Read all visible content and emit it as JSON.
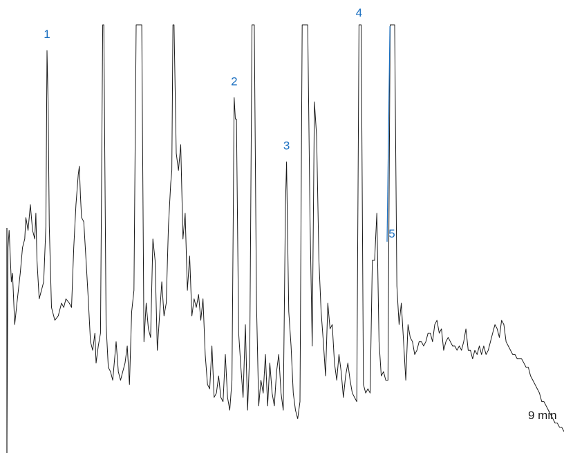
{
  "chart_data": {
    "type": "line",
    "title": "",
    "xlabel": "",
    "ylabel": "",
    "x_end_label": "9 min",
    "series": [
      {
        "points": [
          [
            0.0,
            3
          ],
          [
            0.01,
            48
          ],
          [
            0.02,
            52
          ],
          [
            0.04,
            40
          ],
          [
            0.05,
            42
          ],
          [
            0.07,
            30
          ],
          [
            0.09,
            35
          ],
          [
            0.12,
            42
          ],
          [
            0.14,
            48
          ],
          [
            0.16,
            50
          ],
          [
            0.17,
            55
          ],
          [
            0.19,
            52
          ],
          [
            0.21,
            58
          ],
          [
            0.23,
            52
          ],
          [
            0.25,
            50
          ],
          [
            0.26,
            56
          ],
          [
            0.27,
            45
          ],
          [
            0.29,
            36
          ],
          [
            0.31,
            38
          ],
          [
            0.33,
            40
          ],
          [
            0.35,
            53
          ],
          [
            0.36,
            94
          ],
          [
            0.37,
            82
          ],
          [
            0.38,
            53
          ],
          [
            0.4,
            34
          ],
          [
            0.43,
            31
          ],
          [
            0.46,
            32
          ],
          [
            0.49,
            35
          ],
          [
            0.51,
            34
          ],
          [
            0.53,
            36
          ],
          [
            0.56,
            35
          ],
          [
            0.58,
            34
          ],
          [
            0.6,
            48
          ],
          [
            0.62,
            58
          ],
          [
            0.64,
            65
          ],
          [
            0.65,
            67
          ],
          [
            0.66,
            60
          ],
          [
            0.67,
            55
          ],
          [
            0.69,
            54
          ],
          [
            0.71,
            45
          ],
          [
            0.73,
            36
          ],
          [
            0.75,
            26
          ],
          [
            0.77,
            24
          ],
          [
            0.79,
            28
          ],
          [
            0.8,
            21
          ],
          [
            0.82,
            25
          ],
          [
            0.84,
            28
          ],
          [
            0.86,
            100
          ],
          [
            0.87,
            100
          ],
          [
            0.89,
            30
          ],
          [
            0.91,
            20
          ],
          [
            0.93,
            19
          ],
          [
            0.95,
            17
          ],
          [
            0.98,
            26
          ],
          [
            1.0,
            19
          ],
          [
            1.02,
            17
          ],
          [
            1.04,
            19
          ],
          [
            1.06,
            21
          ],
          [
            1.08,
            25
          ],
          [
            1.1,
            16
          ],
          [
            1.12,
            33
          ],
          [
            1.14,
            38
          ],
          [
            1.16,
            100
          ],
          [
            1.19,
            100
          ],
          [
            1.21,
            100
          ],
          [
            1.23,
            26
          ],
          [
            1.25,
            35
          ],
          [
            1.27,
            29
          ],
          [
            1.29,
            27
          ],
          [
            1.31,
            50
          ],
          [
            1.33,
            45
          ],
          [
            1.35,
            24
          ],
          [
            1.37,
            32
          ],
          [
            1.39,
            40
          ],
          [
            1.41,
            32
          ],
          [
            1.43,
            35
          ],
          [
            1.45,
            53
          ],
          [
            1.47,
            63
          ],
          [
            1.48,
            66
          ],
          [
            1.49,
            100
          ],
          [
            1.5,
            100
          ],
          [
            1.52,
            70
          ],
          [
            1.54,
            66
          ],
          [
            1.56,
            72
          ],
          [
            1.58,
            50
          ],
          [
            1.6,
            56
          ],
          [
            1.62,
            38
          ],
          [
            1.64,
            46
          ],
          [
            1.66,
            32
          ],
          [
            1.68,
            36
          ],
          [
            1.7,
            34
          ],
          [
            1.72,
            37
          ],
          [
            1.74,
            31
          ],
          [
            1.76,
            36
          ],
          [
            1.78,
            23
          ],
          [
            1.8,
            16
          ],
          [
            1.82,
            15
          ],
          [
            1.84,
            25
          ],
          [
            1.86,
            13
          ],
          [
            1.88,
            14
          ],
          [
            1.9,
            18
          ],
          [
            1.92,
            13
          ],
          [
            1.94,
            12
          ],
          [
            1.96,
            23
          ],
          [
            1.98,
            13
          ],
          [
            2.0,
            10
          ],
          [
            2.02,
            17
          ],
          [
            2.04,
            83
          ],
          [
            2.05,
            78
          ],
          [
            2.06,
            78
          ],
          [
            2.08,
            28
          ],
          [
            2.1,
            20
          ],
          [
            2.12,
            13
          ],
          [
            2.14,
            30
          ],
          [
            2.16,
            10
          ],
          [
            2.18,
            24
          ],
          [
            2.2,
            100
          ],
          [
            2.22,
            100
          ],
          [
            2.24,
            35
          ],
          [
            2.26,
            11
          ],
          [
            2.28,
            17
          ],
          [
            2.3,
            14
          ],
          [
            2.32,
            23
          ],
          [
            2.34,
            11
          ],
          [
            2.36,
            21
          ],
          [
            2.38,
            14
          ],
          [
            2.4,
            11
          ],
          [
            2.42,
            19
          ],
          [
            2.44,
            23
          ],
          [
            2.46,
            14
          ],
          [
            2.48,
            10
          ],
          [
            2.5,
            58
          ],
          [
            2.51,
            68
          ],
          [
            2.52,
            50
          ],
          [
            2.53,
            33
          ],
          [
            2.55,
            25
          ],
          [
            2.57,
            14
          ],
          [
            2.59,
            10
          ],
          [
            2.61,
            8
          ],
          [
            2.63,
            12
          ],
          [
            2.65,
            100
          ],
          [
            2.68,
            100
          ],
          [
            2.7,
            100
          ],
          [
            2.72,
            55
          ],
          [
            2.74,
            25
          ],
          [
            2.76,
            82
          ],
          [
            2.78,
            74
          ],
          [
            2.8,
            45
          ],
          [
            2.82,
            33
          ],
          [
            2.84,
            26
          ],
          [
            2.86,
            18
          ],
          [
            2.88,
            35
          ],
          [
            2.9,
            29
          ],
          [
            2.92,
            30
          ],
          [
            2.94,
            21
          ],
          [
            2.96,
            17
          ],
          [
            2.98,
            23
          ],
          [
            3.0,
            19
          ],
          [
            3.02,
            13
          ],
          [
            3.04,
            18
          ],
          [
            3.06,
            21
          ],
          [
            3.08,
            17
          ],
          [
            3.1,
            14
          ],
          [
            3.12,
            13
          ],
          [
            3.14,
            12
          ],
          [
            3.16,
            100
          ],
          [
            3.18,
            100
          ],
          [
            3.2,
            16
          ],
          [
            3.22,
            14
          ],
          [
            3.24,
            15
          ],
          [
            3.26,
            14
          ],
          [
            3.28,
            45
          ],
          [
            3.3,
            45
          ],
          [
            3.32,
            56
          ],
          [
            3.34,
            26
          ],
          [
            3.36,
            18
          ],
          [
            3.38,
            19
          ],
          [
            3.4,
            17
          ],
          [
            3.42,
            17
          ],
          [
            3.44,
            100
          ],
          [
            3.46,
            100
          ],
          [
            3.48,
            100
          ],
          [
            3.5,
            39
          ],
          [
            3.52,
            30
          ],
          [
            3.54,
            35
          ],
          [
            3.56,
            26
          ],
          [
            3.58,
            17
          ],
          [
            3.6,
            30
          ],
          [
            3.62,
            27
          ],
          [
            3.64,
            26
          ],
          [
            3.66,
            23
          ],
          [
            3.68,
            24
          ],
          [
            3.7,
            26
          ],
          [
            3.72,
            26
          ],
          [
            3.74,
            25
          ],
          [
            3.76,
            26
          ],
          [
            3.78,
            28
          ],
          [
            3.8,
            28
          ],
          [
            3.82,
            26
          ],
          [
            3.84,
            30
          ],
          [
            3.86,
            31
          ],
          [
            3.88,
            28
          ],
          [
            3.9,
            29
          ],
          [
            3.92,
            24
          ],
          [
            3.94,
            26
          ],
          [
            3.96,
            27
          ],
          [
            3.98,
            26
          ],
          [
            4.0,
            25
          ],
          [
            4.02,
            25
          ],
          [
            4.04,
            24
          ],
          [
            4.06,
            25
          ],
          [
            4.08,
            24
          ],
          [
            4.1,
            26
          ],
          [
            4.12,
            29
          ],
          [
            4.14,
            24
          ],
          [
            4.16,
            24
          ],
          [
            4.18,
            22
          ],
          [
            4.2,
            24
          ],
          [
            4.22,
            23
          ],
          [
            4.24,
            25
          ],
          [
            4.26,
            23
          ],
          [
            4.28,
            25
          ],
          [
            4.3,
            23
          ],
          [
            4.32,
            24
          ],
          [
            4.34,
            26
          ],
          [
            4.36,
            28
          ],
          [
            4.38,
            30
          ],
          [
            4.4,
            29
          ],
          [
            4.42,
            27
          ],
          [
            4.44,
            31
          ],
          [
            4.46,
            30
          ],
          [
            4.48,
            26
          ],
          [
            4.5,
            25
          ],
          [
            4.52,
            24
          ],
          [
            4.54,
            23
          ],
          [
            4.56,
            23
          ],
          [
            4.58,
            22
          ],
          [
            4.6,
            22
          ],
          [
            4.62,
            22
          ],
          [
            4.64,
            21
          ],
          [
            4.66,
            20
          ],
          [
            4.68,
            20
          ],
          [
            4.7,
            18
          ],
          [
            4.72,
            17
          ],
          [
            4.74,
            16
          ],
          [
            4.76,
            15
          ],
          [
            4.78,
            14
          ],
          [
            4.8,
            12
          ],
          [
            4.82,
            12
          ],
          [
            4.84,
            11
          ],
          [
            4.86,
            10
          ],
          [
            4.88,
            9
          ],
          [
            4.9,
            8
          ],
          [
            4.92,
            7
          ],
          [
            4.94,
            7
          ],
          [
            4.96,
            6
          ],
          [
            4.98,
            6
          ],
          [
            5.0,
            5
          ]
        ]
      }
    ],
    "peaks": [
      {
        "label": "1",
        "x": 0.36
      },
      {
        "label": "2",
        "x": 2.04
      },
      {
        "label": "3",
        "x": 2.51
      },
      {
        "label": "4",
        "x": 3.16
      },
      {
        "label": "5",
        "x": 3.45
      }
    ]
  }
}
